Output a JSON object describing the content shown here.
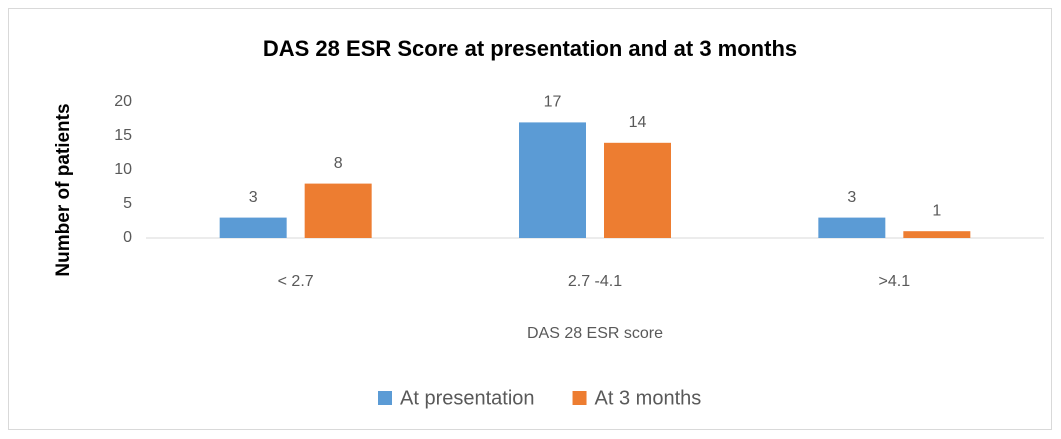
{
  "chart_data": {
    "type": "bar",
    "title": "DAS 28 ESR Score at presentation and at 3 months",
    "xlabel": "DAS 28 ESR score",
    "ylabel": "Number of patients",
    "categories": [
      "< 2.7",
      "2.7 -4.1",
      ">4.1"
    ],
    "series": [
      {
        "name": "At presentation",
        "color": "#5b9bd5",
        "values": [
          3,
          17,
          3
        ]
      },
      {
        "name": "At 3 months",
        "color": "#ed7d31",
        "values": [
          8,
          14,
          1
        ]
      }
    ],
    "ylim": [
      0,
      20
    ],
    "yticks": [
      0,
      5,
      10,
      15,
      20
    ],
    "grid": false,
    "legend": "bottom"
  }
}
